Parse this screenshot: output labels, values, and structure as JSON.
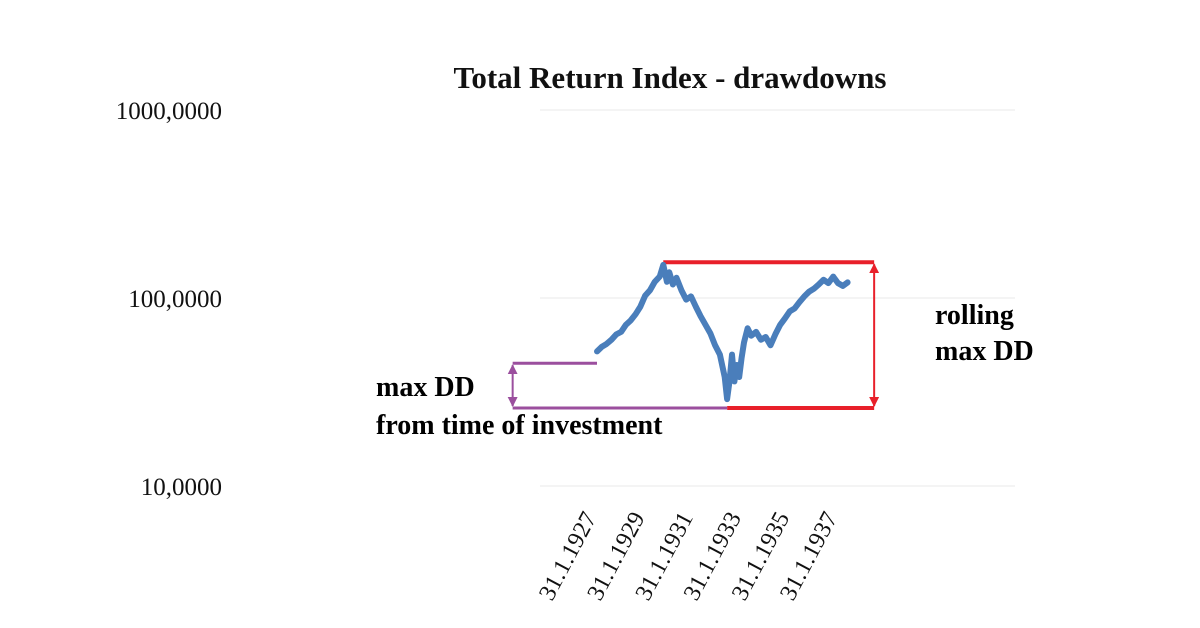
{
  "chart_data": {
    "type": "line",
    "title": "Total Return Index  - drawdowns",
    "xlabel": "",
    "ylabel": "",
    "y_scale": "log",
    "ylim": [
      10,
      1000
    ],
    "y_ticks": [
      1000,
      100,
      10
    ],
    "y_tick_labels": [
      "1000,0000",
      "100,0000",
      "10,0000"
    ],
    "x_tick_labels": [
      "31.1.1927",
      "31.1.1929",
      "31.1.1931",
      "31.1.1933",
      "31.1.1935",
      "31.1.1937"
    ],
    "x_ticks": [
      1927,
      1929,
      1931,
      1933,
      1935,
      1937
    ],
    "grid": true,
    "legend": "none",
    "series": [
      {
        "color": "#4a7ebb",
        "x": [
          1927.0,
          1927.2,
          1927.4,
          1927.6,
          1927.8,
          1928.0,
          1928.2,
          1928.4,
          1928.6,
          1928.8,
          1929.0,
          1929.2,
          1929.4,
          1929.6,
          1929.75,
          1929.9,
          1930.0,
          1930.15,
          1930.3,
          1930.5,
          1930.7,
          1930.9,
          1931.1,
          1931.3,
          1931.5,
          1931.7,
          1931.9,
          1932.1,
          1932.3,
          1932.4,
          1932.5,
          1932.6,
          1932.7,
          1932.8,
          1932.9,
          1933.0,
          1933.1,
          1933.25,
          1933.4,
          1933.6,
          1933.8,
          1934.0,
          1934.2,
          1934.4,
          1934.6,
          1934.8,
          1935.0,
          1935.2,
          1935.4,
          1935.6,
          1935.8,
          1936.0,
          1936.2,
          1936.4,
          1936.6,
          1936.8,
          1937.0,
          1937.2,
          1937.4
        ],
        "y": [
          52,
          55,
          57,
          60,
          64,
          66,
          72,
          76,
          82,
          90,
          103,
          110,
          122,
          130,
          150,
          122,
          137,
          118,
          128,
          110,
          98,
          102,
          90,
          80,
          72,
          65,
          56,
          50,
          38,
          29,
          36,
          50,
          36,
          44,
          38,
          48,
          58,
          69,
          63,
          66,
          60,
          62,
          56,
          64,
          72,
          78,
          85,
          88,
          95,
          102,
          108,
          112,
          118,
          125,
          120,
          130,
          120,
          116,
          121
        ]
      }
    ],
    "annotations": {
      "rolling_max_dd": {
        "text_lines": [
          "rolling",
          "max DD"
        ],
        "color": "#e8202a",
        "x_start": 1929.75,
        "x_end": 1938.5,
        "y_peak": 155,
        "y_trough": 26,
        "trough_x": 1932.4
      },
      "max_dd_from_investment": {
        "text_lines": [
          "max DD",
          "from time of investment"
        ],
        "color": "#9b4f9e",
        "x_start": 1923.5,
        "x_end": 1927.0,
        "y_level": 45,
        "y_trough": 26
      }
    }
  }
}
